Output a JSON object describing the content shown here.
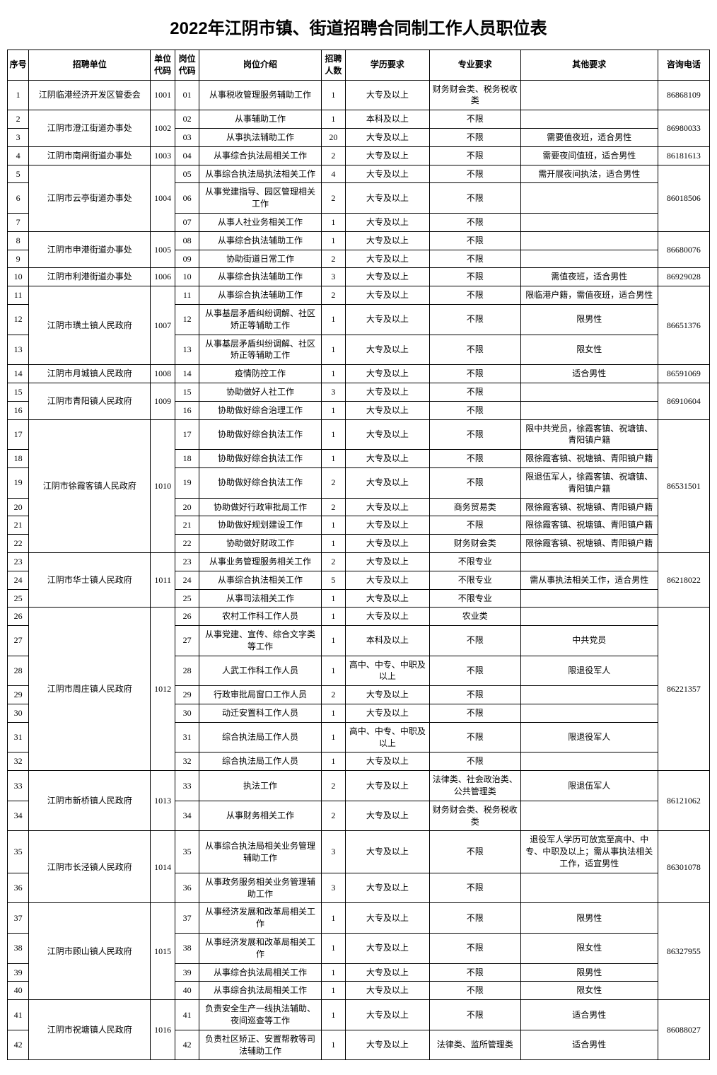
{
  "title": "2022年江阴市镇、街道招聘合同制工作人员职位表",
  "headers": [
    "序号",
    "招聘单位",
    "单位代码",
    "岗位代码",
    "岗位介绍",
    "招聘人数",
    "学历要求",
    "专业要求",
    "其他要求",
    "咨询电话"
  ],
  "rows": [
    {
      "seq": "1",
      "unit": "江阴临港经济开发区管委会",
      "unitRowspan": 1,
      "ucode": "1001",
      "ucodeRowspan": 1,
      "pcode": "01",
      "desc": "从事税收管理服务辅助工作",
      "num": "1",
      "edu": "大专及以上",
      "major": "财务财会类、税务税收类",
      "other": "",
      "tel": "86868109",
      "telRowspan": 1
    },
    {
      "seq": "2",
      "unit": "江阴市澄江街道办事处",
      "unitRowspan": 2,
      "ucode": "1002",
      "ucodeRowspan": 2,
      "pcode": "02",
      "desc": "从事辅助工作",
      "num": "1",
      "edu": "本科及以上",
      "major": "不限",
      "other": "",
      "tel": "86980033",
      "telRowspan": 2
    },
    {
      "seq": "3",
      "pcode": "03",
      "desc": "从事执法辅助工作",
      "num": "20",
      "edu": "大专及以上",
      "major": "不限",
      "other": "需要值夜班，适合男性"
    },
    {
      "seq": "4",
      "unit": "江阴市南闸街道办事处",
      "unitRowspan": 1,
      "ucode": "1003",
      "ucodeRowspan": 1,
      "pcode": "04",
      "desc": "从事综合执法局相关工作",
      "num": "2",
      "edu": "大专及以上",
      "major": "不限",
      "other": "需要夜间值班，适合男性",
      "tel": "86181613",
      "telRowspan": 1
    },
    {
      "seq": "5",
      "unit": "江阴市云亭街道办事处",
      "unitRowspan": 3,
      "ucode": "1004",
      "ucodeRowspan": 3,
      "pcode": "05",
      "desc": "从事综合执法局执法相关工作",
      "num": "4",
      "edu": "大专及以上",
      "major": "不限",
      "other": "需开展夜间执法，适合男性",
      "tel": "86018506",
      "telRowspan": 3
    },
    {
      "seq": "6",
      "pcode": "06",
      "desc": "从事党建指导、园区管理相关工作",
      "num": "2",
      "edu": "大专及以上",
      "major": "不限",
      "other": ""
    },
    {
      "seq": "7",
      "pcode": "07",
      "desc": "从事人社业务相关工作",
      "num": "1",
      "edu": "大专及以上",
      "major": "不限",
      "other": ""
    },
    {
      "seq": "8",
      "unit": "江阴市申港街道办事处",
      "unitRowspan": 2,
      "ucode": "1005",
      "ucodeRowspan": 2,
      "pcode": "08",
      "desc": "从事综合执法辅助工作",
      "num": "1",
      "edu": "大专及以上",
      "major": "不限",
      "other": "",
      "tel": "86680076",
      "telRowspan": 2
    },
    {
      "seq": "9",
      "pcode": "09",
      "desc": "协助街道日常工作",
      "num": "2",
      "edu": "大专及以上",
      "major": "不限",
      "other": ""
    },
    {
      "seq": "10",
      "unit": "江阴市利港街道办事处",
      "unitRowspan": 1,
      "ucode": "1006",
      "ucodeRowspan": 1,
      "pcode": "10",
      "desc": "从事综合执法辅助工作",
      "num": "3",
      "edu": "大专及以上",
      "major": "不限",
      "other": "需值夜班，适合男性",
      "tel": "86929028",
      "telRowspan": 1
    },
    {
      "seq": "11",
      "unit": "江阴市璜土镇人民政府",
      "unitRowspan": 3,
      "ucode": "1007",
      "ucodeRowspan": 3,
      "pcode": "11",
      "desc": "从事综合执法辅助工作",
      "num": "2",
      "edu": "大专及以上",
      "major": "不限",
      "other": "限临港户籍，需值夜班，适合男性",
      "tel": "86651376",
      "telRowspan": 3
    },
    {
      "seq": "12",
      "pcode": "12",
      "desc": "从事基层矛盾纠纷调解、社区矫正等辅助工作",
      "num": "1",
      "edu": "大专及以上",
      "major": "不限",
      "other": "限男性"
    },
    {
      "seq": "13",
      "pcode": "13",
      "desc": "从事基层矛盾纠纷调解、社区矫正等辅助工作",
      "num": "1",
      "edu": "大专及以上",
      "major": "不限",
      "other": "限女性"
    },
    {
      "seq": "14",
      "unit": "江阴市月城镇人民政府",
      "unitRowspan": 1,
      "ucode": "1008",
      "ucodeRowspan": 1,
      "pcode": "14",
      "desc": "疫情防控工作",
      "num": "1",
      "edu": "大专及以上",
      "major": "不限",
      "other": "适合男性",
      "tel": "86591069",
      "telRowspan": 1
    },
    {
      "seq": "15",
      "unit": "江阴市青阳镇人民政府",
      "unitRowspan": 2,
      "ucode": "1009",
      "ucodeRowspan": 2,
      "pcode": "15",
      "desc": "协助做好人社工作",
      "num": "3",
      "edu": "大专及以上",
      "major": "不限",
      "other": "",
      "tel": "86910604",
      "telRowspan": 2
    },
    {
      "seq": "16",
      "pcode": "16",
      "desc": "协助做好综合治理工作",
      "num": "1",
      "edu": "大专及以上",
      "major": "不限",
      "other": ""
    },
    {
      "seq": "17",
      "unit": "江阴市徐霞客镇人民政府",
      "unitRowspan": 6,
      "ucode": "1010",
      "ucodeRowspan": 6,
      "pcode": "17",
      "desc": "协助做好综合执法工作",
      "num": "1",
      "edu": "大专及以上",
      "major": "不限",
      "other": "限中共党员，徐霞客镇、祝塘镇、青阳镇户籍",
      "tel": "86531501",
      "telRowspan": 6
    },
    {
      "seq": "18",
      "pcode": "18",
      "desc": "协助做好综合执法工作",
      "num": "1",
      "edu": "大专及以上",
      "major": "不限",
      "other": "限徐霞客镇、祝塘镇、青阳镇户籍"
    },
    {
      "seq": "19",
      "pcode": "19",
      "desc": "协助做好综合执法工作",
      "num": "2",
      "edu": "大专及以上",
      "major": "不限",
      "other": "限退伍军人，徐霞客镇、祝塘镇、青阳镇户籍"
    },
    {
      "seq": "20",
      "pcode": "20",
      "desc": "协助做好行政审批局工作",
      "num": "2",
      "edu": "大专及以上",
      "major": "商务贸易类",
      "other": "限徐霞客镇、祝塘镇、青阳镇户籍"
    },
    {
      "seq": "21",
      "pcode": "21",
      "desc": "协助做好规划建设工作",
      "num": "1",
      "edu": "大专及以上",
      "major": "不限",
      "other": "限徐霞客镇、祝塘镇、青阳镇户籍"
    },
    {
      "seq": "22",
      "pcode": "22",
      "desc": "协助做好财政工作",
      "num": "1",
      "edu": "大专及以上",
      "major": "财务财会类",
      "other": "限徐霞客镇、祝塘镇、青阳镇户籍"
    },
    {
      "seq": "23",
      "unit": "江阴市华士镇人民政府",
      "unitRowspan": 3,
      "ucode": "1011",
      "ucodeRowspan": 3,
      "pcode": "23",
      "desc": "从事业务管理服务相关工作",
      "num": "2",
      "edu": "大专及以上",
      "major": "不限专业",
      "other": "",
      "tel": "86218022",
      "telRowspan": 3
    },
    {
      "seq": "24",
      "pcode": "24",
      "desc": "从事综合执法相关工作",
      "num": "5",
      "edu": "大专及以上",
      "major": "不限专业",
      "other": "需从事执法相关工作，适合男性"
    },
    {
      "seq": "25",
      "pcode": "25",
      "desc": "从事司法相关工作",
      "num": "1",
      "edu": "大专及以上",
      "major": "不限专业",
      "other": ""
    },
    {
      "seq": "26",
      "unit": "江阴市周庄镇人民政府",
      "unitRowspan": 7,
      "ucode": "1012",
      "ucodeRowspan": 7,
      "pcode": "26",
      "desc": "农村工作科工作人员",
      "num": "1",
      "edu": "大专及以上",
      "major": "农业类",
      "other": "",
      "tel": "86221357",
      "telRowspan": 7
    },
    {
      "seq": "27",
      "pcode": "27",
      "desc": "从事党建、宣传、综合文字类等工作",
      "num": "1",
      "edu": "本科及以上",
      "major": "不限",
      "other": "中共党员"
    },
    {
      "seq": "28",
      "pcode": "28",
      "desc": "人武工作科工作人员",
      "num": "1",
      "edu": "高中、中专、中职及以上",
      "major": "不限",
      "other": "限退役军人"
    },
    {
      "seq": "29",
      "pcode": "29",
      "desc": "行政审批局窗口工作人员",
      "num": "2",
      "edu": "大专及以上",
      "major": "不限",
      "other": ""
    },
    {
      "seq": "30",
      "pcode": "30",
      "desc": "动迁安置科工作人员",
      "num": "1",
      "edu": "大专及以上",
      "major": "不限",
      "other": ""
    },
    {
      "seq": "31",
      "pcode": "31",
      "desc": "综合执法局工作人员",
      "num": "1",
      "edu": "高中、中专、中职及以上",
      "major": "不限",
      "other": "限退役军人"
    },
    {
      "seq": "32",
      "pcode": "32",
      "desc": "综合执法局工作人员",
      "num": "1",
      "edu": "大专及以上",
      "major": "不限",
      "other": ""
    },
    {
      "seq": "33",
      "unit": "江阴市新桥镇人民政府",
      "unitRowspan": 2,
      "ucode": "1013",
      "ucodeRowspan": 2,
      "pcode": "33",
      "desc": "执法工作",
      "num": "2",
      "edu": "大专及以上",
      "major": "法律类、社会政治类、公共管理类",
      "other": "限退伍军人",
      "tel": "86121062",
      "telRowspan": 2
    },
    {
      "seq": "34",
      "pcode": "34",
      "desc": "从事财务相关工作",
      "num": "2",
      "edu": "大专及以上",
      "major": "财务财会类、税务税收类",
      "other": ""
    },
    {
      "seq": "35",
      "unit": "江阴市长泾镇人民政府",
      "unitRowspan": 2,
      "ucode": "1014",
      "ucodeRowspan": 2,
      "pcode": "35",
      "desc": "从事综合执法局相关业务管理辅助工作",
      "num": "3",
      "edu": "大专及以上",
      "major": "不限",
      "other": "退役军人学历可放宽至高中、中专、中职及以上；需从事执法相关工作，适宜男性",
      "tel": "86301078",
      "telRowspan": 2
    },
    {
      "seq": "36",
      "pcode": "36",
      "desc": "从事政务服务相关业务管理辅助工作",
      "num": "3",
      "edu": "大专及以上",
      "major": "不限",
      "other": ""
    },
    {
      "seq": "37",
      "unit": "江阴市顾山镇人民政府",
      "unitRowspan": 4,
      "ucode": "1015",
      "ucodeRowspan": 4,
      "pcode": "37",
      "desc": "从事经济发展和改革局相关工作",
      "num": "1",
      "edu": "大专及以上",
      "major": "不限",
      "other": "限男性",
      "tel": "86327955",
      "telRowspan": 4
    },
    {
      "seq": "38",
      "pcode": "38",
      "desc": "从事经济发展和改革局相关工作",
      "num": "1",
      "edu": "大专及以上",
      "major": "不限",
      "other": "限女性"
    },
    {
      "seq": "39",
      "pcode": "39",
      "desc": "从事综合执法局相关工作",
      "num": "1",
      "edu": "大专及以上",
      "major": "不限",
      "other": "限男性"
    },
    {
      "seq": "40",
      "pcode": "40",
      "desc": "从事综合执法局相关工作",
      "num": "1",
      "edu": "大专及以上",
      "major": "不限",
      "other": "限女性"
    },
    {
      "seq": "41",
      "unit": "江阴市祝塘镇人民政府",
      "unitRowspan": 2,
      "ucode": "1016",
      "ucodeRowspan": 2,
      "pcode": "41",
      "desc": "负责安全生产一线执法辅助、夜间巡查等工作",
      "num": "1",
      "edu": "大专及以上",
      "major": "不限",
      "other": "适合男性",
      "tel": "86088027",
      "telRowspan": 2
    },
    {
      "seq": "42",
      "pcode": "42",
      "desc": "负责社区矫正、安置帮教等司法辅助工作",
      "num": "1",
      "edu": "大专及以上",
      "major": "法律类、监所管理类",
      "other": "适合男性"
    }
  ]
}
